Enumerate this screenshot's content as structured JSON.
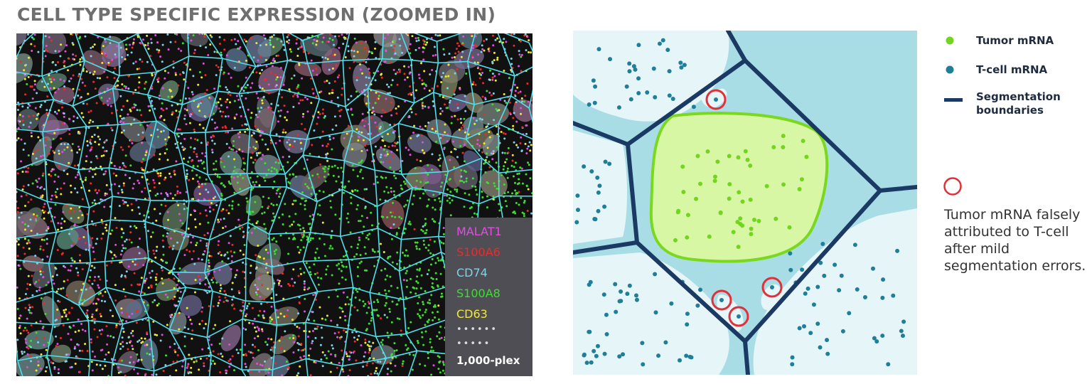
{
  "title": "CELL TYPE SPECIFIC EXPRESSION (ZOOMED IN)",
  "genes": [
    {
      "label": "MALAT1",
      "color": "#e24fe0"
    },
    {
      "label": "S100A6",
      "color": "#ee2a2a"
    },
    {
      "label": "CD74",
      "color": "#7fd2e6"
    },
    {
      "label": "S100A8",
      "color": "#3fdd32"
    },
    {
      "label": "CD63",
      "color": "#f1ea2e"
    }
  ],
  "plex": {
    "dots1": "••••••",
    "dots2": "•••••",
    "label": "1,000-plex"
  },
  "legend": {
    "tumor": {
      "label": "Tumor mRNA",
      "color": "#72d61e"
    },
    "tcell": {
      "label": "T-cell mRNA",
      "color": "#1f7f99"
    },
    "boundary": {
      "label": "Segmentation boundaries",
      "color": "#1b3a63"
    },
    "error_note": "Tumor mRNA falsely attributed to T-cell after mild segmentation errors.",
    "error_color": "#e0303a"
  }
}
